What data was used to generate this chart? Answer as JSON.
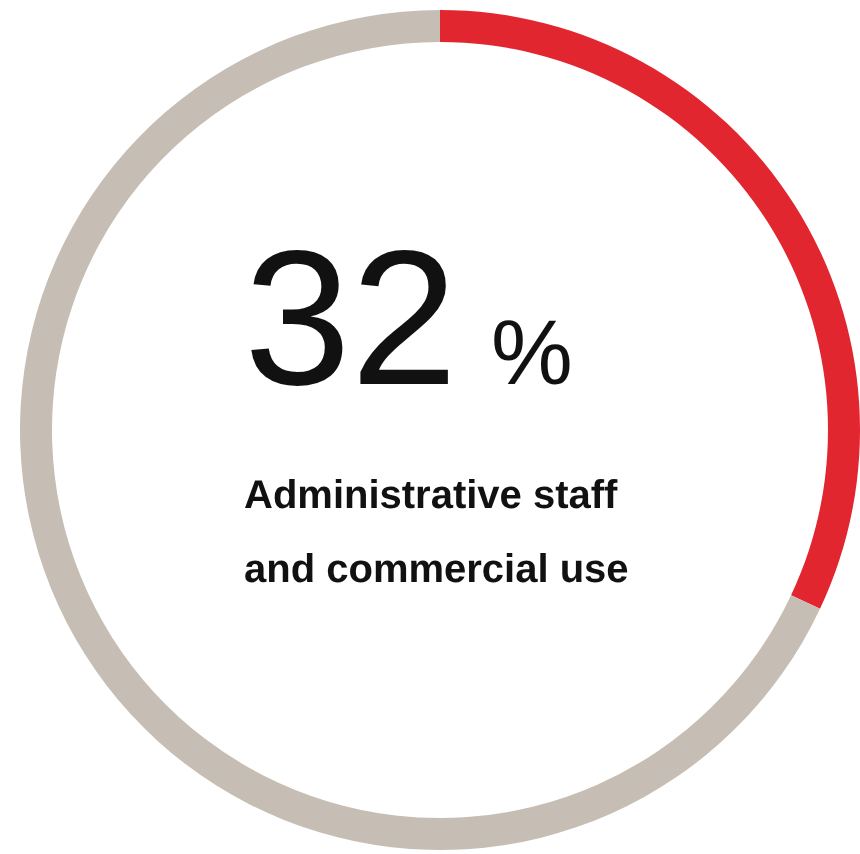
{
  "chart_data": {
    "type": "donut",
    "title": "32 %",
    "subtitle": "Administrative staff and commercial use",
    "categories": [
      null,
      null
    ],
    "values": [
      32,
      68
    ],
    "colors": [
      "#e2262f",
      "#c6bdb4"
    ]
  }
}
